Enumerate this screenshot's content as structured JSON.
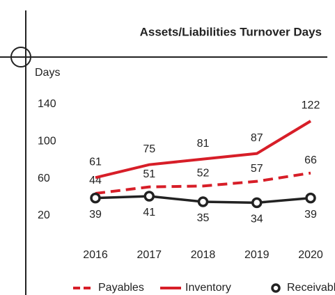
{
  "chart_data": {
    "type": "line",
    "title": "Assets/Liabilities Turnover Days",
    "y_label": "Days",
    "categories": [
      "2016",
      "2017",
      "2018",
      "2019",
      "2020"
    ],
    "series": [
      {
        "name": "Payables",
        "color": "#d71e28",
        "style": "dashed",
        "values": [
          44,
          51,
          52,
          57,
          66
        ]
      },
      {
        "name": "Inventory",
        "color": "#d71e28",
        "style": "solid",
        "values": [
          61,
          75,
          81,
          87,
          122
        ]
      },
      {
        "name": "Receivables",
        "color": "#222222",
        "style": "marker",
        "values": [
          39,
          41,
          35,
          34,
          39
        ]
      }
    ],
    "ylim": [
      20,
      140
    ],
    "yticks": [
      20,
      60,
      100,
      140
    ],
    "legend": "bottom"
  }
}
